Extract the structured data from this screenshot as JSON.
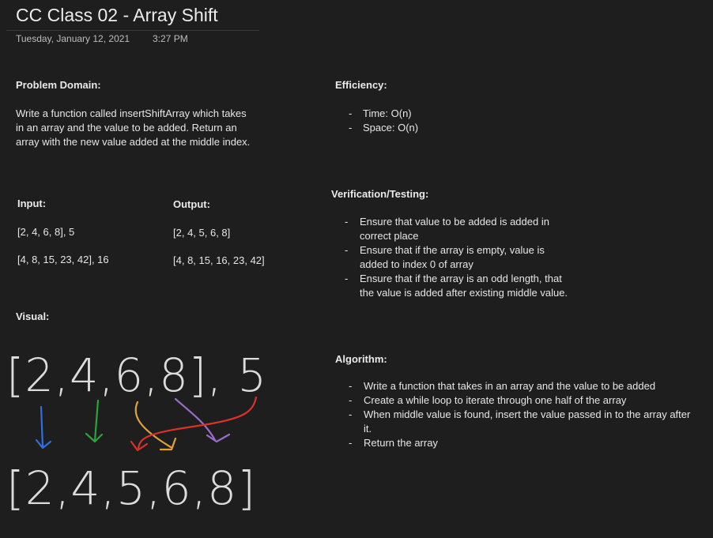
{
  "page": {
    "title": "CC Class 02 - Array Shift",
    "date": "Tuesday, January 12, 2021",
    "time": "3:27 PM"
  },
  "problem_domain": {
    "heading": "Problem Domain:",
    "text": "Write a function called insertShiftArray which takes in an array and the value to be added. Return an array with the new value added at the middle index."
  },
  "examples": {
    "input_heading": "Input:",
    "output_heading": "Output:",
    "rows": [
      {
        "input": "[2, 4, 6, 8], 5",
        "output": "[2, 4, 5, 6, 8]"
      },
      {
        "input": "[4, 8, 15, 23, 42], 16",
        "output": "[4, 8, 15, 16, 23, 42]"
      }
    ]
  },
  "visual": {
    "heading": "Visual:",
    "top_line": "[2,4,6,8], 5",
    "bottom_line": "[2,4,5,6,8]",
    "arrow_colors": [
      "#2f6fe0",
      "#29a33a",
      "#e0a23a",
      "#9a6cc8",
      "#d8322a"
    ]
  },
  "efficiency": {
    "heading": "Efficiency:",
    "items": [
      "Time: O(n)",
      "Space: O(n)"
    ]
  },
  "verification": {
    "heading": "Verification/Testing:",
    "items": [
      "Ensure that value to be added is added in correct place",
      "Ensure that if the array is empty, value is added to index 0 of array",
      "Ensure that if the array is an odd length, that the value is added after existing middle value."
    ]
  },
  "algorithm": {
    "heading": "Algorithm:",
    "items": [
      "Write a function that takes in an array and the value to be added",
      "Create a while loop to iterate through one half of the array",
      "When middle value is found, insert the value passed in to the array after it.",
      "Return the array"
    ]
  }
}
